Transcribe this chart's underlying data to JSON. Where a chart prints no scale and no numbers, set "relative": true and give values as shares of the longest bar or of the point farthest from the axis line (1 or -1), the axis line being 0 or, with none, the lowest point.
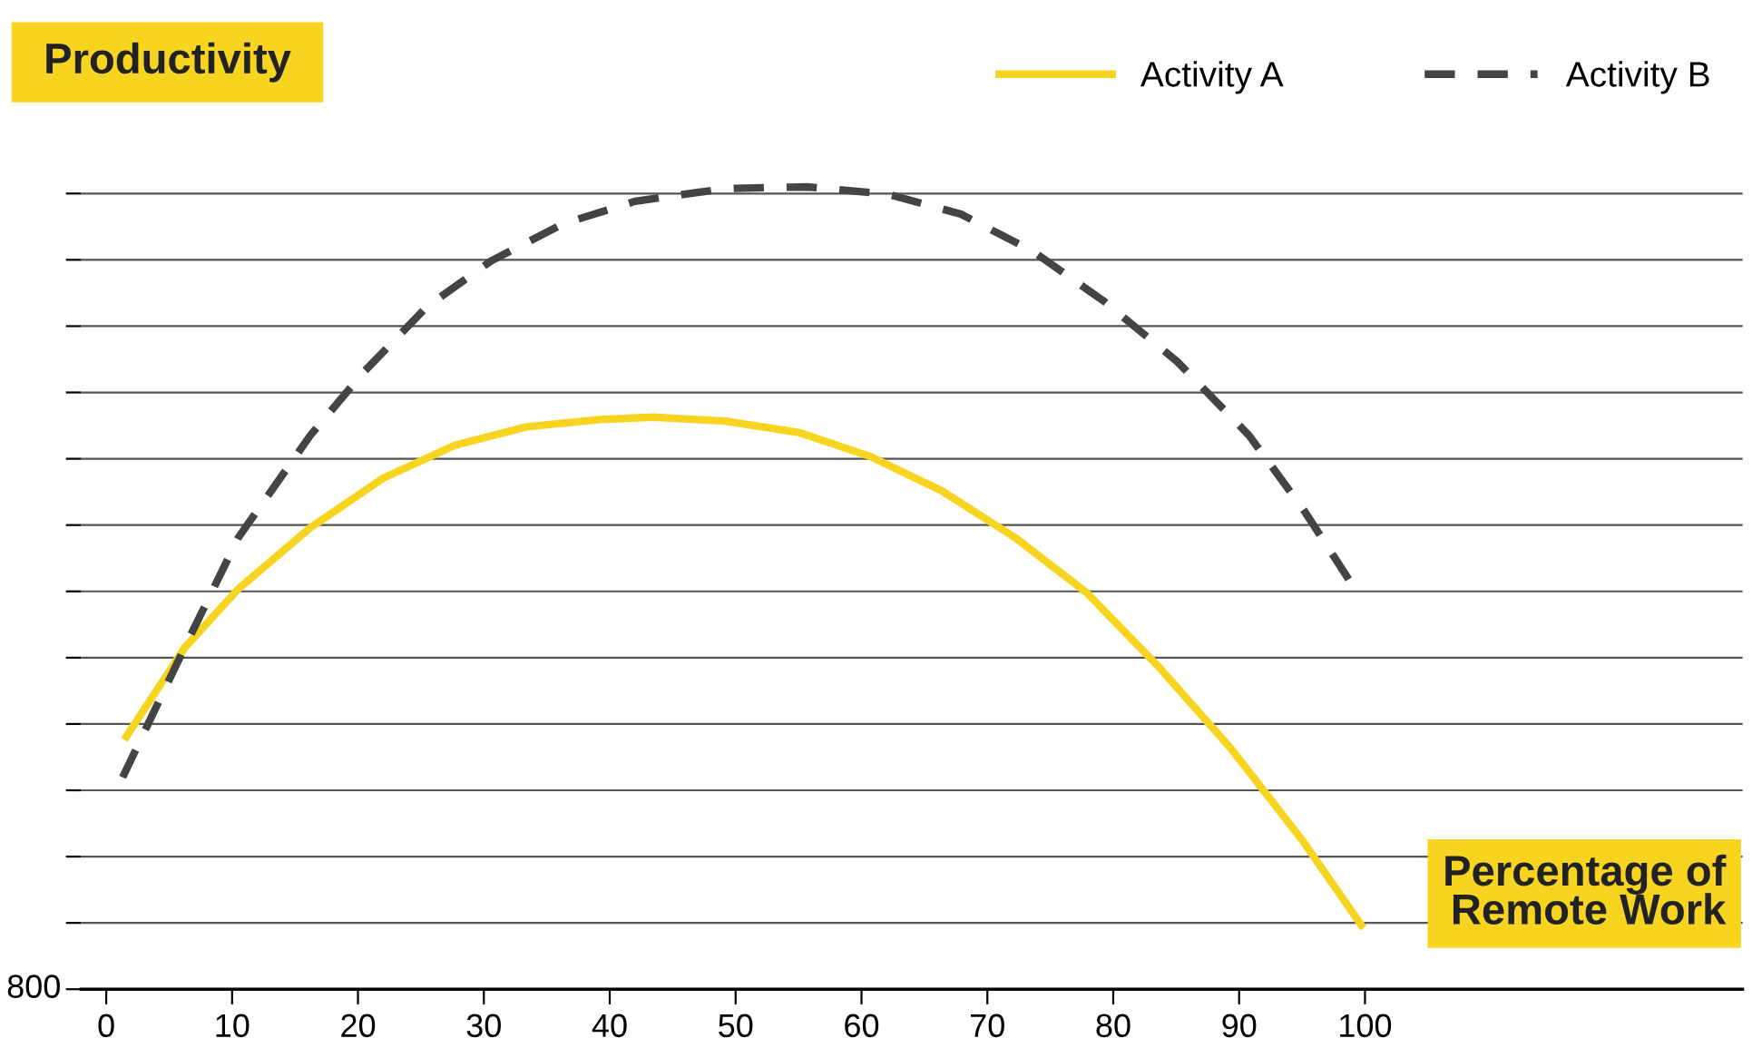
{
  "chart_data": {
    "type": "line",
    "relative": true,
    "ylabel": "Productivity",
    "xlabel": "Percentage of\nRemote Work",
    "annotations": [
      "800"
    ],
    "xlim": [
      -2,
      130
    ],
    "xticks": [
      0,
      10,
      20,
      30,
      40,
      50,
      60,
      70,
      80,
      90,
      100
    ],
    "grid": "y",
    "legend": "top right",
    "tick_labels": "x",
    "series": [
      {
        "name": "Activity A",
        "color": "#f7d41f",
        "line_style": "solid",
        "x": [
          1.6,
          6.2,
          10.5,
          16.2,
          22,
          27.7,
          33.4,
          39.2,
          43.5,
          49.2,
          55,
          60.7,
          66.4,
          72.2,
          77.9,
          83.6,
          89.4,
          95.1,
          99.7
        ],
        "values": [
          0.315,
          0.425,
          0.499,
          0.575,
          0.637,
          0.678,
          0.701,
          0.71,
          0.713,
          0.708,
          0.694,
          0.664,
          0.621,
          0.563,
          0.494,
          0.402,
          0.299,
          0.184,
          0.08
        ]
      },
      {
        "name": "Activity B",
        "color": "#444444",
        "line_style": "dashed",
        "x": [
          1.3,
          6.2,
          10.5,
          16.2,
          20.5,
          25.5,
          30.6,
          36.3,
          42,
          49.2,
          55.7,
          62.1,
          67.9,
          73.6,
          79.3,
          85.1,
          90.8,
          95.1,
          99.4
        ],
        "values": [
          0.264,
          0.425,
          0.563,
          0.69,
          0.77,
          0.851,
          0.908,
          0.954,
          0.982,
          0.998,
          1.0,
          0.991,
          0.966,
          0.92,
          0.857,
          0.782,
          0.69,
          0.598,
          0.494
        ]
      }
    ]
  }
}
